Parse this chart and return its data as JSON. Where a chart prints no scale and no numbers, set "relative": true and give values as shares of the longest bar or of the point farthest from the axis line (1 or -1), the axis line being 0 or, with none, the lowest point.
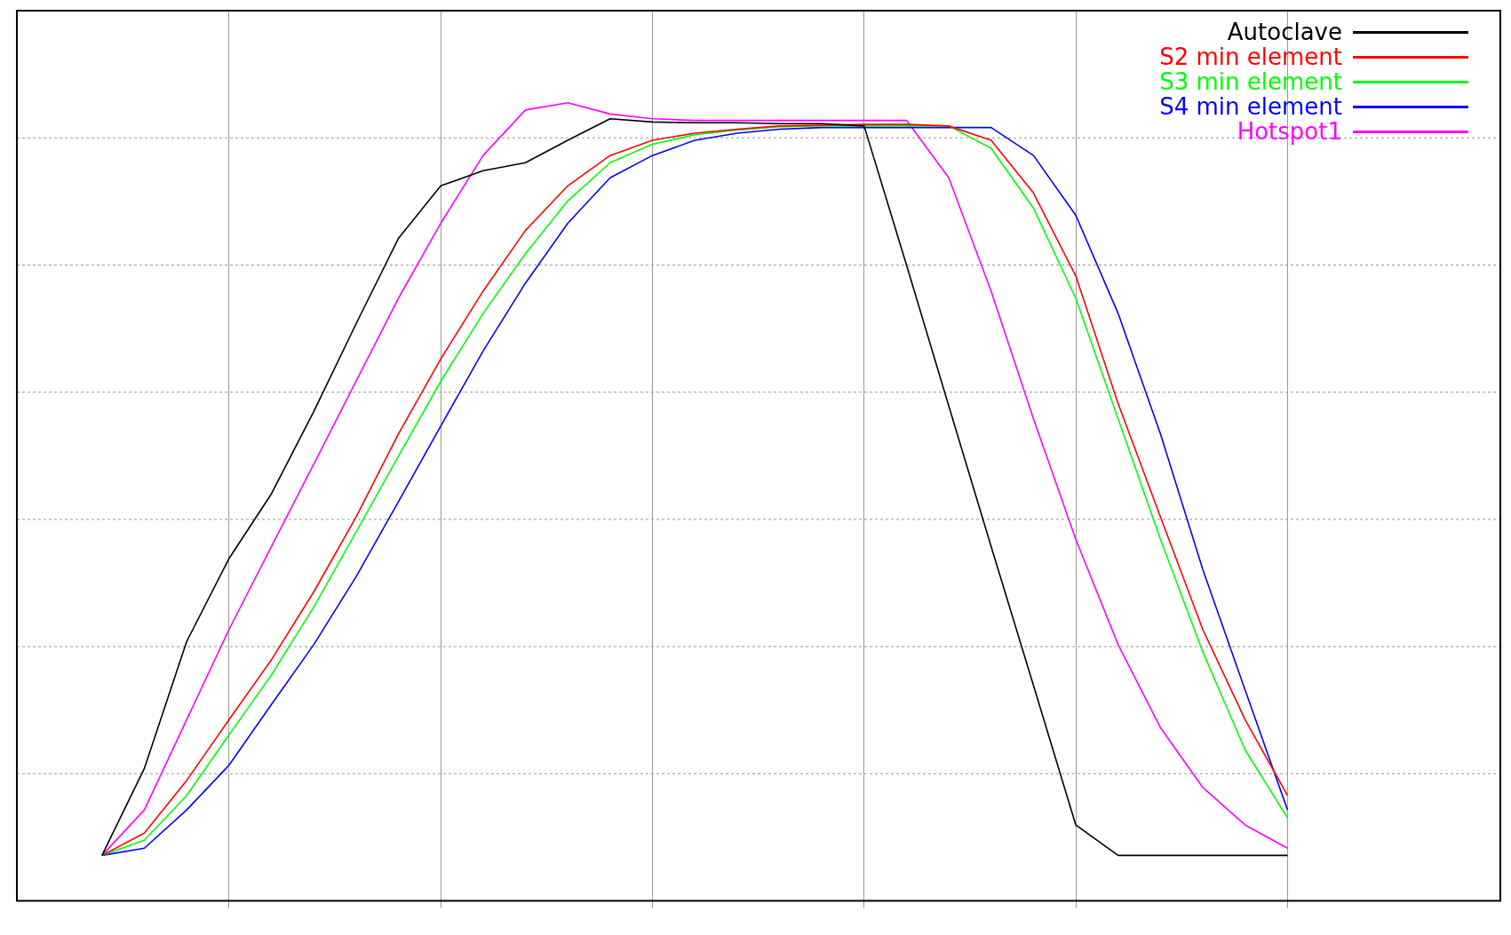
{
  "chart_data": {
    "type": "line",
    "relative": true,
    "grid": true,
    "legend": "top right",
    "marker": "none",
    "line_style": "solid",
    "categories": [
      null,
      null,
      null,
      null,
      null,
      null,
      null,
      null,
      null,
      null,
      null,
      null,
      null,
      null,
      null,
      null,
      null,
      null,
      null,
      null,
      null,
      null,
      null,
      null,
      null,
      null,
      null,
      null,
      null
    ],
    "series": [
      {
        "name": "Autoclave",
        "color": "#000000",
        "values": [
          0.057,
          0.166,
          0.325,
          0.429,
          0.51,
          0.613,
          0.723,
          0.83,
          0.896,
          0.915,
          0.925,
          0.953,
          0.98,
          0.976,
          0.975,
          0.975,
          0.974,
          0.974,
          0.971,
          0.797,
          0.62,
          0.444,
          0.27,
          0.095,
          0.057,
          0.057,
          0.057,
          0.057,
          0.057
        ]
      },
      {
        "name": "S2 min element",
        "color": "#ff0000",
        "values": [
          0.057,
          0.085,
          0.151,
          0.227,
          0.302,
          0.387,
          0.481,
          0.585,
          0.679,
          0.764,
          0.84,
          0.896,
          0.934,
          0.953,
          0.962,
          0.967,
          0.971,
          0.972,
          0.973,
          0.973,
          0.971,
          0.953,
          0.887,
          0.783,
          0.623,
          0.481,
          0.34,
          0.227,
          0.132
        ]
      },
      {
        "name": "S3 min element",
        "color": "#00ff00",
        "values": [
          0.057,
          0.076,
          0.132,
          0.208,
          0.283,
          0.368,
          0.462,
          0.557,
          0.651,
          0.736,
          0.811,
          0.877,
          0.925,
          0.948,
          0.96,
          0.966,
          0.97,
          0.971,
          0.971,
          0.971,
          0.971,
          0.943,
          0.868,
          0.755,
          0.604,
          0.453,
          0.312,
          0.189,
          0.104
        ]
      },
      {
        "name": "S4 min element",
        "color": "#0000ff",
        "values": [
          0.057,
          0.066,
          0.114,
          0.17,
          0.246,
          0.321,
          0.406,
          0.5,
          0.595,
          0.689,
          0.774,
          0.849,
          0.906,
          0.934,
          0.953,
          0.962,
          0.967,
          0.969,
          0.969,
          0.969,
          0.969,
          0.969,
          0.934,
          0.859,
          0.736,
          0.585,
          0.415,
          0.264,
          0.114
        ]
      },
      {
        "name": "Hotspot1",
        "color": "#ff00ff",
        "values": [
          0.057,
          0.114,
          0.227,
          0.34,
          0.444,
          0.547,
          0.651,
          0.755,
          0.849,
          0.934,
          0.991,
          1.0,
          0.986,
          0.98,
          0.978,
          0.978,
          0.978,
          0.978,
          0.978,
          0.978,
          0.906,
          0.764,
          0.604,
          0.453,
          0.321,
          0.217,
          0.142,
          0.095,
          0.066
        ]
      }
    ]
  }
}
